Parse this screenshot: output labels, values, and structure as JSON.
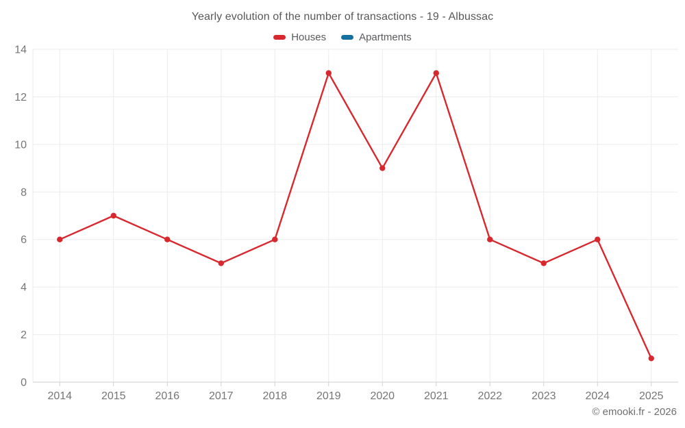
{
  "page": {
    "title": "Yearly evolution of the number of transactions - 19 - Albussac",
    "watermark": "© emooki.fr - 2026"
  },
  "legend": {
    "items": [
      {
        "label": "Houses",
        "color": "#d8282e"
      },
      {
        "label": "Apartments",
        "color": "#1470a0"
      }
    ]
  },
  "chart_data": {
    "type": "line",
    "title": "Yearly evolution of the number of transactions - 19 - Albussac",
    "categories": [
      "2014",
      "2015",
      "2016",
      "2017",
      "2018",
      "2019",
      "2020",
      "2021",
      "2022",
      "2023",
      "2024",
      "2025"
    ],
    "series": [
      {
        "name": "Houses",
        "color": "#d8282e",
        "values": [
          6,
          7,
          6,
          5,
          6,
          13,
          9,
          13,
          6,
          5,
          6,
          1
        ]
      },
      {
        "name": "Apartments",
        "color": "#1470a0",
        "values": []
      }
    ],
    "xlabel": "",
    "ylabel": "",
    "ylim": [
      0,
      14
    ],
    "yticks": [
      0,
      2,
      4,
      6,
      8,
      10,
      12,
      14
    ],
    "grid": true,
    "legend_position": "top",
    "marker_radius": 4.2,
    "line_width": 2.4
  },
  "style": {
    "grid_color": "#ebebeb",
    "axis_color": "#cfcfcf",
    "tick_label_color": "#757575",
    "background": "#ffffff"
  }
}
